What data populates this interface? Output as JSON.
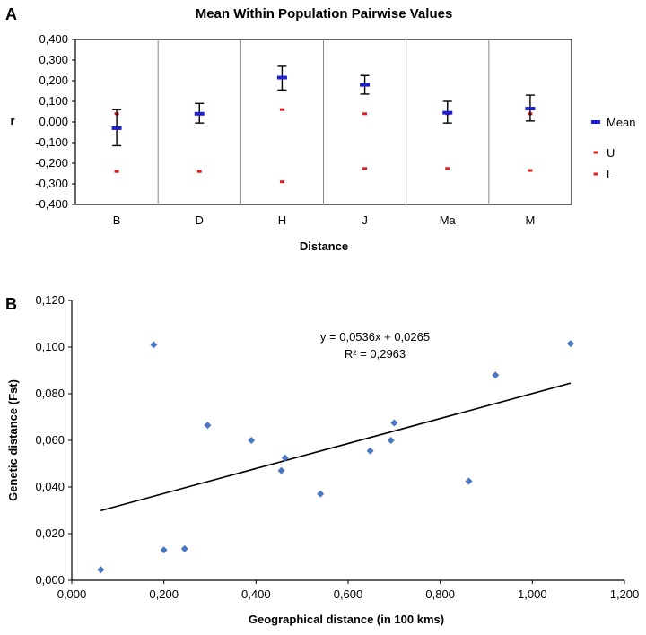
{
  "chart_data": [
    {
      "panel": "A",
      "type": "scatter",
      "title": "Mean Within Population Pairwise Values",
      "xlabel": "Distance",
      "ylabel": "r",
      "categories": [
        "B",
        "D",
        "H",
        "J",
        "Ma",
        "M"
      ],
      "ylim": [
        -0.4,
        0.4
      ],
      "ytick_values": [
        0.4,
        0.3,
        0.2,
        0.1,
        0.0,
        -0.1,
        -0.2,
        -0.3,
        -0.4
      ],
      "ytick_labels": [
        "0,400",
        "0,300",
        "0,200",
        "0,100",
        "0,000",
        "-0,100",
        "-0,200",
        "-0,300",
        "-0,400"
      ],
      "series": [
        {
          "name": "Mean",
          "values": [
            -0.03,
            0.04,
            0.215,
            0.18,
            0.045,
            0.065
          ],
          "err_low": [
            -0.115,
            -0.005,
            0.155,
            0.135,
            -0.005,
            0.005
          ],
          "err_high": [
            0.06,
            0.09,
            0.27,
            0.225,
            0.1,
            0.13
          ],
          "color": "#1f1fd1"
        },
        {
          "name": "U",
          "values": [
            0.04,
            0.04,
            0.06,
            0.04,
            0.04,
            0.04
          ],
          "color": "#e02020"
        },
        {
          "name": "L",
          "values": [
            -0.24,
            -0.24,
            -0.29,
            -0.225,
            -0.225,
            -0.235
          ],
          "color": "#e02020"
        }
      ],
      "legend": "right",
      "grid": "vertical category separators"
    },
    {
      "panel": "B",
      "type": "scatter",
      "xlabel": "Geographical distance (in 100 kms)",
      "ylabel": "Genetic distance (Fst)",
      "xlim": [
        0.0,
        1.2
      ],
      "ylim": [
        0.0,
        0.12
      ],
      "xtick_values": [
        0.0,
        0.2,
        0.4,
        0.6,
        0.8,
        1.0,
        1.2
      ],
      "xtick_labels": [
        "0,000",
        "0,200",
        "0,400",
        "0,600",
        "0,800",
        "1,000",
        "1,200"
      ],
      "ytick_values": [
        0.0,
        0.02,
        0.04,
        0.06,
        0.08,
        0.1,
        0.12
      ],
      "ytick_labels": [
        "0,000",
        "0,020",
        "0,040",
        "0,060",
        "0,080",
        "0,100",
        "0,120"
      ],
      "points": [
        {
          "x": 0.063,
          "y": 0.0045
        },
        {
          "x": 0.178,
          "y": 0.101
        },
        {
          "x": 0.2,
          "y": 0.013
        },
        {
          "x": 0.245,
          "y": 0.0135
        },
        {
          "x": 0.295,
          "y": 0.0665
        },
        {
          "x": 0.39,
          "y": 0.06
        },
        {
          "x": 0.455,
          "y": 0.047
        },
        {
          "x": 0.463,
          "y": 0.0525
        },
        {
          "x": 0.54,
          "y": 0.037
        },
        {
          "x": 0.648,
          "y": 0.0555
        },
        {
          "x": 0.693,
          "y": 0.06
        },
        {
          "x": 0.7,
          "y": 0.0675
        },
        {
          "x": 0.862,
          "y": 0.0425
        },
        {
          "x": 0.92,
          "y": 0.088
        },
        {
          "x": 1.083,
          "y": 0.1015
        }
      ],
      "trendline": {
        "slope": 0.0536,
        "intercept": 0.0265,
        "x_range": [
          0.063,
          1.083
        ]
      },
      "equation_text": "y = 0,0536x + 0,0265",
      "r2_text": "R² = 0,2963",
      "marker_color": "#4a76c4"
    }
  ],
  "panels": {
    "a_label": "A",
    "b_label": "B"
  }
}
